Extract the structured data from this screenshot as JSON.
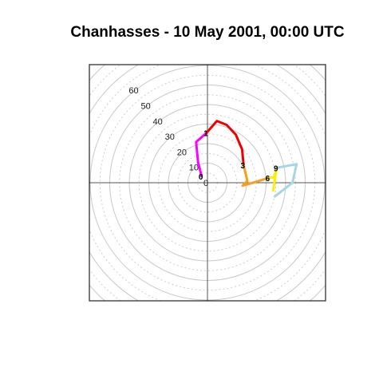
{
  "chart_data": {
    "type": "line",
    "title": "Chanhasses - 10 May 2001, 00:00 UTC",
    "coordinate_system": "polar",
    "rmax": 60,
    "ring_labels": [
      "0",
      "10",
      "20",
      "30",
      "40",
      "50",
      "60"
    ],
    "hour_labels": [
      {
        "text": "0",
        "hour": 0
      },
      {
        "text": "1",
        "hour": 1
      },
      {
        "text": "3",
        "hour": 3
      },
      {
        "text": "6",
        "hour": 6
      },
      {
        "text": "9",
        "hour": 9
      }
    ],
    "series": [
      {
        "color": "#ff00ff",
        "points": [
          [
            -3.0,
            3.3
          ],
          [
            -4.8,
            10.5
          ],
          [
            -5.8,
            20.8
          ],
          [
            -0.4,
            25.6
          ]
        ]
      },
      {
        "color": "#ee0000",
        "points": [
          [
            -0.4,
            25.6
          ],
          [
            4.8,
            31.6
          ],
          [
            9.8,
            29.6
          ],
          [
            14.5,
            24.6
          ],
          [
            17.7,
            17.1
          ],
          [
            18.5,
            9.0
          ]
        ]
      },
      {
        "color": "#f5a020",
        "points": [
          [
            18.5,
            9.0
          ],
          [
            20.4,
            1.0
          ],
          [
            18.0,
            -1.5
          ],
          [
            25.4,
            0.6
          ],
          [
            31.2,
            2.5
          ]
        ]
      },
      {
        "color": "#ffee00",
        "points": [
          [
            31.2,
            2.5
          ],
          [
            34.0,
            2.8
          ],
          [
            35.4,
            7.6
          ],
          [
            33.6,
            -4.0
          ]
        ]
      },
      {
        "color": "#a8d4e4",
        "points": [
          [
            35.4,
            7.6
          ],
          [
            45.6,
            9.5
          ],
          [
            43.5,
            0.0
          ],
          [
            34.5,
            -7.0
          ]
        ]
      }
    ]
  }
}
